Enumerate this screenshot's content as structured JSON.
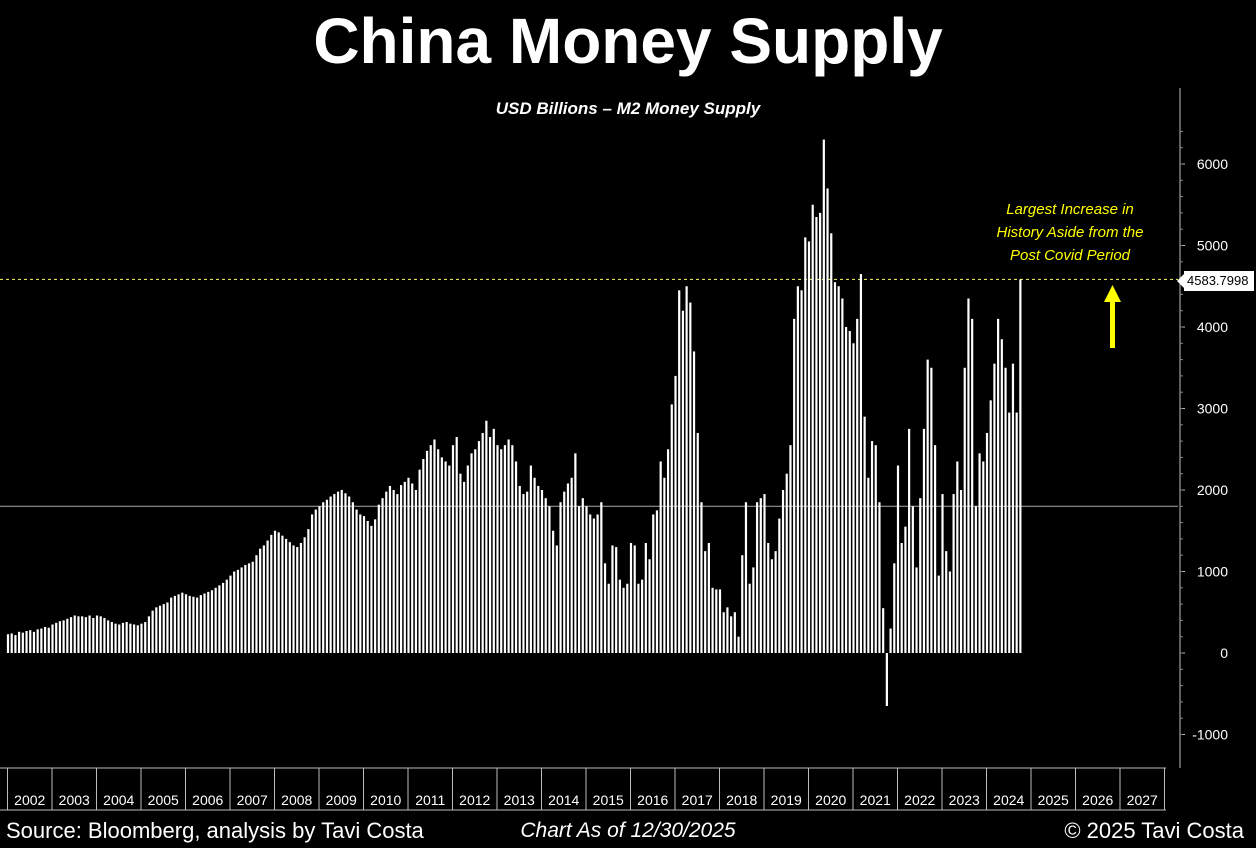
{
  "header": {
    "title": "China Money Supply",
    "subtitle": "USD Billions – M2 Money Supply"
  },
  "footer": {
    "source": "Source: Bloomberg, analysis by Tavi Costa",
    "as_of": "Chart As of 12/30/2025",
    "copyright": "© 2025 Tavi Costa"
  },
  "annotation": {
    "lines": [
      "Largest Increase in",
      "History Aside from the",
      "Post Covid Period"
    ],
    "color": "#ffff00"
  },
  "last_value_label": "4583.7998",
  "colors": {
    "background": "#000000",
    "bars": "#ffffff",
    "reference_line": "#ffff66",
    "annotation": "#ffff00"
  },
  "chart_data": {
    "type": "bar",
    "frequency": "monthly",
    "x_start": "2002-01",
    "ylim": [
      -1400,
      6800
    ],
    "yticks": [
      -1000,
      0,
      1000,
      2000,
      3000,
      4000,
      5000,
      6000
    ],
    "xticks": [
      "2002",
      "2003",
      "2004",
      "2005",
      "2006",
      "2007",
      "2008",
      "2009",
      "2010",
      "2011",
      "2012",
      "2013",
      "2014",
      "2015",
      "2016",
      "2017",
      "2018",
      "2019",
      "2020",
      "2021",
      "2022",
      "2023",
      "2024",
      "2025",
      "2026",
      "2027"
    ],
    "grid": false,
    "reference_lines": [
      {
        "y": 4583.7998,
        "style": "dotted",
        "color": "#ffff66"
      },
      {
        "y": 1800,
        "style": "solid",
        "color": "#aaaaaa"
      }
    ],
    "last_value": 4583.7998,
    "values": [
      230,
      240,
      220,
      260,
      250,
      270,
      280,
      260,
      290,
      300,
      320,
      310,
      350,
      370,
      390,
      400,
      420,
      440,
      460,
      450,
      450,
      440,
      460,
      430,
      460,
      450,
      430,
      400,
      380,
      360,
      350,
      370,
      380,
      360,
      350,
      340,
      360,
      380,
      450,
      520,
      560,
      580,
      600,
      620,
      680,
      700,
      720,
      740,
      720,
      700,
      690,
      680,
      710,
      730,
      750,
      770,
      800,
      830,
      860,
      900,
      950,
      1000,
      1020,
      1050,
      1080,
      1100,
      1120,
      1200,
      1280,
      1320,
      1380,
      1450,
      1500,
      1480,
      1440,
      1400,
      1360,
      1320,
      1300,
      1350,
      1420,
      1520,
      1700,
      1760,
      1800,
      1850,
      1880,
      1920,
      1950,
      1980,
      2000,
      1960,
      1920,
      1850,
      1760,
      1700,
      1680,
      1620,
      1560,
      1640,
      1820,
      1900,
      1980,
      2050,
      2000,
      1950,
      2060,
      2100,
      2150,
      2080,
      2000,
      2250,
      2380,
      2480,
      2550,
      2620,
      2500,
      2400,
      2350,
      2300,
      2550,
      2650,
      2200,
      2100,
      2300,
      2450,
      2500,
      2600,
      2700,
      2850,
      2650,
      2750,
      2550,
      2500,
      2550,
      2620,
      2550,
      2350,
      2050,
      1950,
      1980,
      2300,
      2150,
      2050,
      2000,
      1900,
      1800,
      1500,
      1320,
      1850,
      1980,
      2080,
      2150,
      2450,
      1800,
      1900,
      1800,
      1700,
      1650,
      1700,
      1850,
      1100,
      850,
      1320,
      1300,
      900,
      800,
      850,
      1350,
      1320,
      850,
      900,
      1350,
      1150,
      1700,
      1750,
      2350,
      2150,
      2500,
      3050,
      3400,
      4450,
      4200,
      4500,
      4300,
      3700,
      2700,
      1850,
      1250,
      1350,
      800,
      780,
      780,
      500,
      560,
      450,
      500,
      200,
      1200,
      1850,
      850,
      1050,
      1850,
      1900,
      1950,
      1350,
      1150,
      1250,
      1650,
      2000,
      2200,
      2550,
      4100,
      4500,
      4450,
      5100,
      5050,
      5500,
      5350,
      5400,
      6300,
      5700,
      5150,
      4550,
      4500,
      4350,
      4000,
      3950,
      3800,
      4100,
      4650,
      2900,
      2150,
      2600,
      2550,
      1850,
      550,
      -650,
      300,
      1100,
      2300,
      1350,
      1550,
      2750,
      1800,
      1050,
      1900,
      2750,
      3600,
      3500,
      2550,
      950,
      1950,
      1250,
      1000,
      1950,
      2350,
      2000,
      3500,
      4350,
      4100,
      1800,
      2450,
      2350,
      2700,
      3100,
      3550,
      4100,
      3850,
      3500,
      2950,
      3550,
      2950,
      4583.7998
    ]
  }
}
